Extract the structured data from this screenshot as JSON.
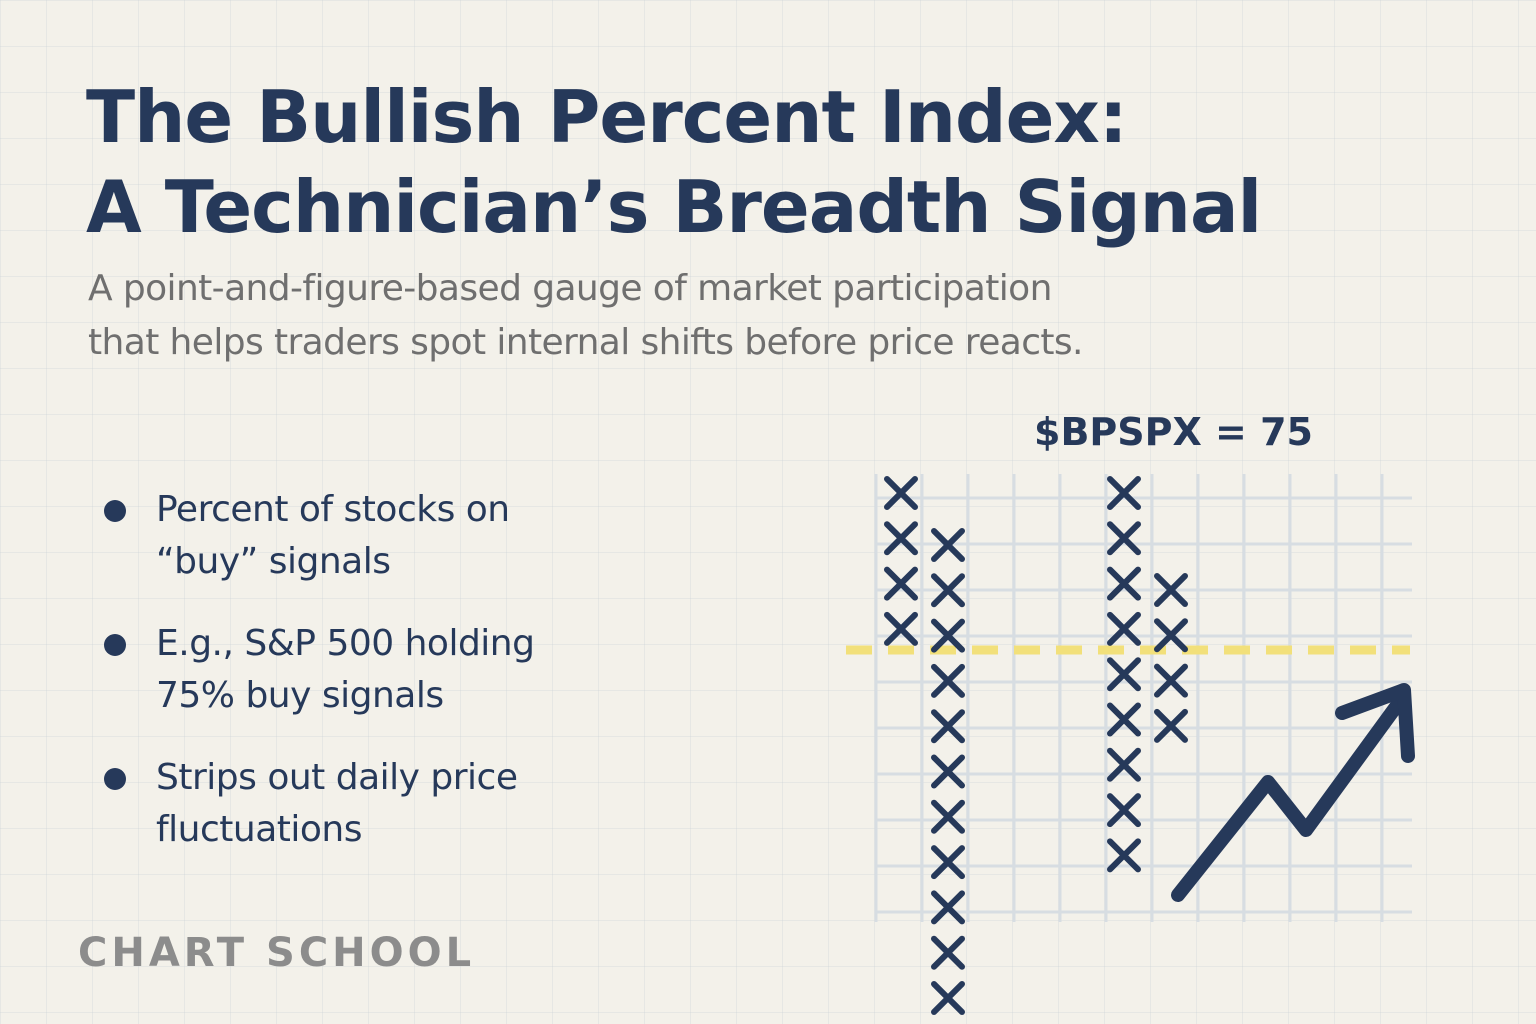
{
  "title": {
    "line1": "The Bullish Percent Index:",
    "line2": "A Technician’s Breadth Signal"
  },
  "subtitle": {
    "line1": "A point-and-figure-based gauge of market participation",
    "line2": "that helps traders spot internal shifts before price reacts."
  },
  "bullets": [
    {
      "line1": "Percent of stocks on",
      "line2": "“buy” signals"
    },
    {
      "line1": "E.g., S&P 500 holding",
      "line2": "75% buy signals"
    },
    {
      "line1": "Strips out daily price",
      "line2": "fluctuations"
    }
  ],
  "chart_label": "$BPSPX = 75",
  "brand": "CHART SCHOOL",
  "colors": {
    "navy": "#26395a",
    "threshold": "#f2e07a",
    "grid": "#d7dde2",
    "subtitle_gray": "#6f6f6f",
    "brand_gray": "#8c8c8c"
  },
  "pf_columns": [
    {
      "symbol": "X",
      "count": 4
    },
    {
      "symbol": "X",
      "count": 11
    },
    {
      "symbol": "X",
      "count": 9
    },
    {
      "symbol": "X",
      "count": 4
    }
  ],
  "icons": {
    "trend": "trend-up-arrow-icon"
  }
}
